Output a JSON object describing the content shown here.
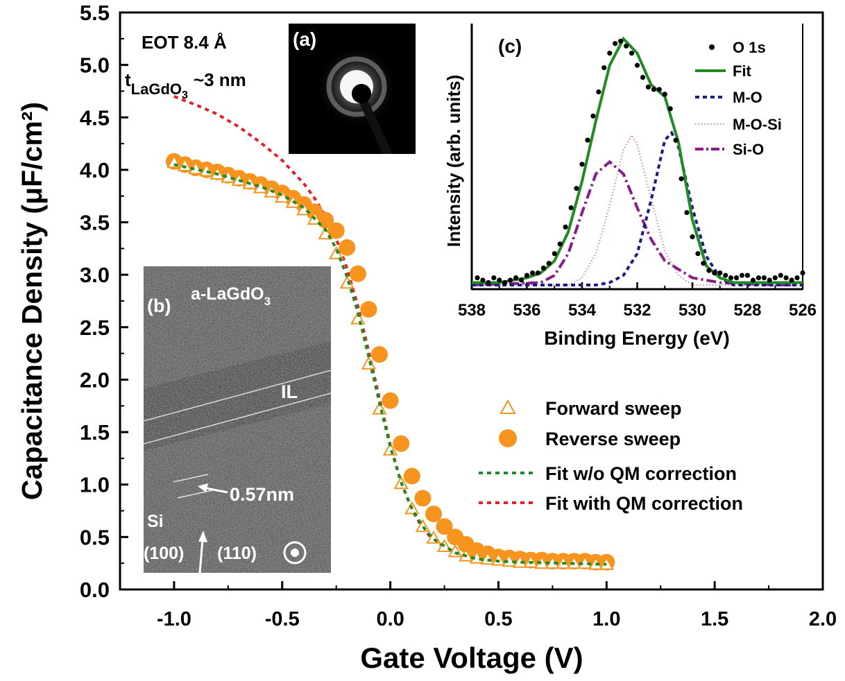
{
  "colors": {
    "orange": "#f7941d",
    "green_fit": "#1f8c1f",
    "red_fit": "#ee1c24",
    "navy": "#1a1a8c",
    "purple": "#8c1a8c",
    "pink": "#d07fa8"
  },
  "chart_data": [
    {
      "type": "scatter",
      "title": "",
      "xlabel": "Gate Voltage (V)",
      "ylabel": "Capacitance Density (μF/cm²)",
      "xlim": [
        -1.25,
        2.0
      ],
      "ylim": [
        0.0,
        5.5
      ],
      "x_ticks": [
        "-1.0",
        "-0.5",
        "0.0",
        "0.5",
        "1.0",
        "1.5",
        "2.0"
      ],
      "y_ticks": [
        "0.0",
        "0.5",
        "1.0",
        "1.5",
        "2.0",
        "2.5",
        "3.0",
        "3.5",
        "4.0",
        "4.5",
        "5.0",
        "5.5"
      ],
      "annotations": [
        "EOT 8.4 Å",
        "t",
        "LaGdO",
        "3",
        "~3 nm"
      ],
      "legend": {
        "position": "bottom-right",
        "entries": [
          "Forward sweep",
          "Reverse sweep",
          "Fit w/o QM correction",
          "Fit with QM correction"
        ]
      },
      "series": [
        {
          "name": "Forward sweep",
          "marker": "open-triangle",
          "x": [
            -1.0,
            -0.95,
            -0.9,
            -0.85,
            -0.8,
            -0.75,
            -0.7,
            -0.65,
            -0.6,
            -0.55,
            -0.5,
            -0.45,
            -0.4,
            -0.35,
            -0.3,
            -0.25,
            -0.2,
            -0.15,
            -0.1,
            -0.05,
            0.0,
            0.05,
            0.1,
            0.15,
            0.2,
            0.25,
            0.3,
            0.35,
            0.4,
            0.45,
            0.5,
            0.55,
            0.6,
            0.65,
            0.7,
            0.75,
            0.8,
            0.85,
            0.9,
            0.95,
            1.0
          ],
          "y": [
            4.07,
            4.04,
            4.01,
            3.99,
            3.96,
            3.93,
            3.9,
            3.87,
            3.83,
            3.79,
            3.74,
            3.69,
            3.62,
            3.53,
            3.39,
            3.2,
            2.92,
            2.58,
            2.15,
            1.72,
            1.33,
            1.01,
            0.77,
            0.6,
            0.49,
            0.41,
            0.36,
            0.32,
            0.3,
            0.29,
            0.28,
            0.27,
            0.26,
            0.26,
            0.25,
            0.25,
            0.25,
            0.25,
            0.25,
            0.24,
            0.24
          ]
        },
        {
          "name": "Reverse sweep",
          "marker": "filled-circle",
          "x": [
            -1.0,
            -0.95,
            -0.9,
            -0.85,
            -0.8,
            -0.75,
            -0.7,
            -0.65,
            -0.6,
            -0.55,
            -0.5,
            -0.45,
            -0.4,
            -0.35,
            -0.3,
            -0.25,
            -0.2,
            -0.15,
            -0.1,
            -0.05,
            0.0,
            0.05,
            0.1,
            0.15,
            0.2,
            0.25,
            0.3,
            0.35,
            0.4,
            0.45,
            0.5,
            0.55,
            0.6,
            0.65,
            0.7,
            0.75,
            0.8,
            0.85,
            0.9,
            0.95,
            1.0
          ],
          "y": [
            4.08,
            4.05,
            4.02,
            4.0,
            3.98,
            3.95,
            3.92,
            3.89,
            3.86,
            3.82,
            3.78,
            3.73,
            3.67,
            3.6,
            3.52,
            3.42,
            3.26,
            3.01,
            2.67,
            2.24,
            1.8,
            1.39,
            1.08,
            0.87,
            0.72,
            0.6,
            0.5,
            0.43,
            0.37,
            0.34,
            0.31,
            0.3,
            0.29,
            0.28,
            0.28,
            0.27,
            0.27,
            0.27,
            0.27,
            0.26,
            0.26
          ]
        },
        {
          "name": "Fit w/o QM correction",
          "line": "dotted",
          "x": [
            -1.0,
            -0.8,
            -0.6,
            -0.5,
            -0.4,
            -0.3,
            -0.25,
            -0.2,
            -0.15,
            -0.1,
            -0.05,
            0.0,
            0.05,
            0.1,
            0.15,
            0.2,
            0.3,
            0.4,
            0.5,
            0.6,
            0.8,
            1.0
          ],
          "y": [
            4.05,
            3.96,
            3.84,
            3.76,
            3.64,
            3.43,
            3.25,
            2.98,
            2.64,
            2.22,
            1.78,
            1.36,
            1.02,
            0.77,
            0.6,
            0.48,
            0.35,
            0.29,
            0.27,
            0.26,
            0.25,
            0.24
          ]
        },
        {
          "name": "Fit with QM correction",
          "line": "dotted",
          "x": [
            -1.0,
            -0.9,
            -0.8,
            -0.7,
            -0.6,
            -0.5,
            -0.4,
            -0.35,
            -0.3,
            -0.25,
            -0.2,
            -0.15,
            -0.1,
            -0.05,
            0.0,
            0.05,
            0.1,
            0.15,
            0.2,
            0.3,
            0.4,
            0.5,
            0.6,
            0.8,
            1.0
          ],
          "y": [
            4.7,
            4.62,
            4.53,
            4.41,
            4.26,
            4.09,
            3.87,
            3.73,
            3.56,
            3.34,
            3.06,
            2.7,
            2.27,
            1.82,
            1.38,
            1.02,
            0.76,
            0.58,
            0.47,
            0.34,
            0.29,
            0.27,
            0.26,
            0.25,
            0.24
          ]
        }
      ]
    },
    {
      "type": "line",
      "title": "(c)",
      "xlabel": "Binding Energy (eV)",
      "ylabel": "Intensity (arb. units)",
      "xlim": [
        538,
        526
      ],
      "ylim": [
        0,
        1.1
      ],
      "x_ticks": [
        "538",
        "536",
        "534",
        "532",
        "530",
        "528",
        "526"
      ],
      "legend": {
        "position": "top-right",
        "entries": [
          "O 1s",
          "Fit",
          "M-O",
          "M-O-Si",
          "Si-O"
        ]
      },
      "series": [
        {
          "name": "O 1s",
          "marker": "dot",
          "x": [
            537.8,
            537.6,
            537.4,
            537.2,
            537.0,
            536.8,
            536.6,
            536.4,
            536.2,
            536.0,
            535.8,
            535.6,
            535.4,
            535.2,
            535.0,
            534.8,
            534.6,
            534.4,
            534.2,
            534.0,
            533.8,
            533.6,
            533.4,
            533.2,
            533.0,
            532.8,
            532.6,
            532.4,
            532.2,
            532.0,
            531.8,
            531.6,
            531.4,
            531.2,
            531.0,
            530.8,
            530.6,
            530.4,
            530.2,
            530.0,
            529.8,
            529.6,
            529.4,
            529.2,
            529.0,
            528.8,
            528.6,
            528.4,
            528.2,
            528.0,
            527.8,
            527.6,
            527.4,
            527.2,
            527.0,
            526.8,
            526.6,
            526.4,
            526.2,
            526.0
          ],
          "y": [
            0.03,
            0.02,
            0.01,
            0.03,
            0.02,
            0.01,
            0.02,
            0.03,
            0.02,
            0.04,
            0.05,
            0.05,
            0.07,
            0.09,
            0.13,
            0.17,
            0.24,
            0.32,
            0.4,
            0.5,
            0.6,
            0.7,
            0.8,
            0.9,
            0.96,
            1.0,
            1.01,
            0.99,
            0.96,
            0.91,
            0.86,
            0.82,
            0.81,
            0.81,
            0.79,
            0.73,
            0.6,
            0.44,
            0.3,
            0.2,
            0.13,
            0.09,
            0.06,
            0.05,
            0.05,
            0.04,
            0.03,
            0.03,
            0.04,
            0.04,
            0.02,
            0.03,
            0.03,
            0.02,
            0.03,
            0.04,
            0.03,
            0.02,
            0.03,
            0.05
          ]
        },
        {
          "name": "Fit",
          "line": "solid",
          "x": [
            538.0,
            537.5,
            537.0,
            536.5,
            536.0,
            535.5,
            535.0,
            534.5,
            534.0,
            533.5,
            533.0,
            532.5,
            532.0,
            531.5,
            531.0,
            530.5,
            530.0,
            529.5,
            529.0,
            528.5,
            528.0,
            527.0,
            526.0
          ],
          "y": [
            0.01,
            0.01,
            0.01,
            0.02,
            0.03,
            0.05,
            0.1,
            0.22,
            0.43,
            0.68,
            0.91,
            1.02,
            0.96,
            0.83,
            0.78,
            0.59,
            0.27,
            0.08,
            0.03,
            0.01,
            0.01,
            0.01,
            0.01
          ]
        },
        {
          "name": "M-O",
          "line": "dashed",
          "x": [
            538.0,
            533.5,
            533.0,
            532.5,
            532.0,
            531.5,
            531.0,
            530.75,
            530.5,
            530.0,
            529.5,
            529.0,
            528.5,
            526.0
          ],
          "y": [
            0.0,
            0.0,
            0.01,
            0.04,
            0.13,
            0.35,
            0.6,
            0.63,
            0.57,
            0.32,
            0.12,
            0.03,
            0.0,
            0.0
          ]
        },
        {
          "name": "M-O-Si",
          "line": "dotted",
          "x": [
            538.0,
            534.5,
            534.0,
            533.5,
            533.0,
            532.5,
            532.2,
            532.0,
            531.5,
            531.0,
            530.5,
            530.0,
            526.0
          ],
          "y": [
            0.0,
            0.0,
            0.03,
            0.13,
            0.33,
            0.56,
            0.62,
            0.58,
            0.36,
            0.14,
            0.04,
            0.0,
            0.0
          ]
        },
        {
          "name": "Si-O",
          "line": "dash-dot",
          "x": [
            538.0,
            535.5,
            535.0,
            534.5,
            534.0,
            533.5,
            533.0,
            532.5,
            532.0,
            531.5,
            531.0,
            530.0,
            529.0,
            527.0,
            526.0
          ],
          "y": [
            0.0,
            0.01,
            0.04,
            0.13,
            0.3,
            0.46,
            0.51,
            0.46,
            0.32,
            0.19,
            0.1,
            0.03,
            0.01,
            0.0,
            0.0
          ]
        }
      ]
    }
  ],
  "insets": {
    "a_label": "(a)",
    "b_label": "(b)",
    "b_film_label": "a-LaGdO",
    "b_film_sub": "3",
    "b_il_label": "IL",
    "b_spacing_label": "0.57nm",
    "b_si_label": "Si",
    "b_si100_label": "(100)",
    "b_si110_label": "(110)"
  }
}
